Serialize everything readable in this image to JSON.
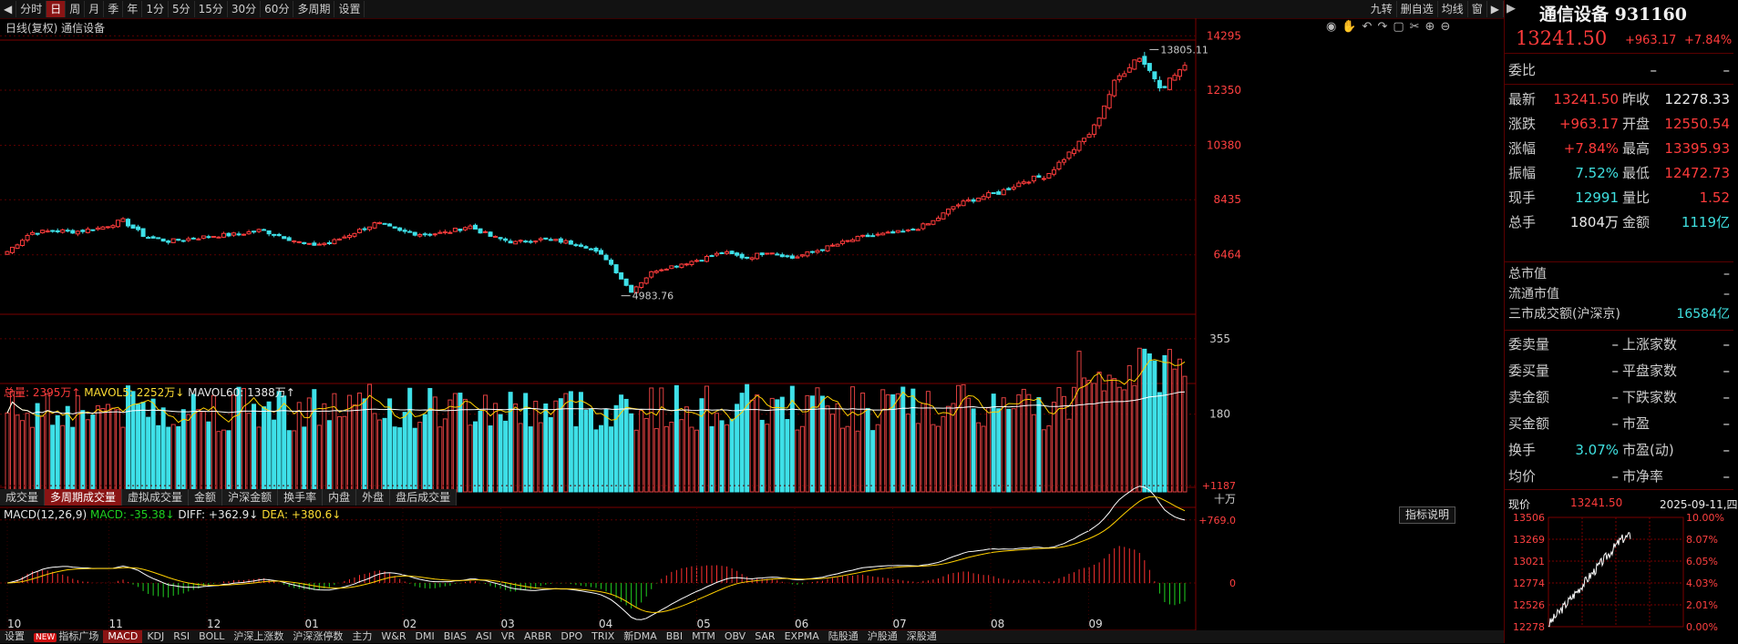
{
  "toolbar": {
    "periods": [
      {
        "label": "◀"
      },
      {
        "label": "分时"
      },
      {
        "label": "日",
        "active": true
      },
      {
        "label": "周"
      },
      {
        "label": "月"
      },
      {
        "label": "季"
      },
      {
        "label": "年"
      },
      {
        "label": "1分"
      },
      {
        "label": "5分"
      },
      {
        "label": "15分"
      },
      {
        "label": "30分"
      },
      {
        "label": "60分"
      },
      {
        "label": "多周期"
      },
      {
        "label": "设置"
      }
    ],
    "right_buttons": [
      {
        "label": "九转"
      },
      {
        "label": "删自选"
      },
      {
        "label": "均线"
      },
      {
        "label": "窗"
      },
      {
        "label": "▶"
      }
    ]
  },
  "main_chart": {
    "title": "日线(复权) 通信设备",
    "y_ticks": [
      "14295",
      "12350",
      "10380",
      "8435",
      "6464"
    ],
    "high_label": "13805.11",
    "low_label": "4983.76"
  },
  "volume": {
    "legend": {
      "total_label": "总量: 2395万↑",
      "mavol5_label": "MAVOL5: 2252万↓",
      "mavol60_label": "MAVOL60: 1388万↑"
    },
    "y_ticks": [
      "355",
      "180"
    ],
    "unit": "十万",
    "tabs": [
      {
        "label": "成交量"
      },
      {
        "label": "多周期成交量",
        "active": true
      },
      {
        "label": "虚拟成交量"
      },
      {
        "label": "金额"
      },
      {
        "label": "沪深金额"
      },
      {
        "label": "换手率"
      },
      {
        "label": "内盘"
      },
      {
        "label": "外盘"
      },
      {
        "label": "盘后成交量"
      }
    ]
  },
  "macd": {
    "legend": {
      "name": "MACD(12,26,9)",
      "macd_label": "MACD: -35.38↓",
      "diff_label": "DIFF: +362.9↓",
      "dea_label": "DEA: +380.6↓"
    },
    "y_ticks": [
      "+1187",
      "+769.0",
      "0"
    ],
    "explain_button": "指标说明"
  },
  "x_axis_months": [
    "10",
    "11",
    "12",
    "01",
    "02",
    "03",
    "04",
    "05",
    "06",
    "07",
    "08",
    "09"
  ],
  "bottom_tabs": [
    {
      "label": "设置"
    },
    {
      "label": "指标广场",
      "new": true,
      "badge": "NEW"
    },
    {
      "label": "MACD",
      "active": true
    },
    {
      "label": "KDJ"
    },
    {
      "label": "RSI"
    },
    {
      "label": "BOLL"
    },
    {
      "label": "沪深上涨数"
    },
    {
      "label": "沪深涨停数"
    },
    {
      "label": "主力"
    },
    {
      "label": "W&R"
    },
    {
      "label": "DMI"
    },
    {
      "label": "BIAS"
    },
    {
      "label": "ASI"
    },
    {
      "label": "VR"
    },
    {
      "label": "ARBR"
    },
    {
      "label": "DPO"
    },
    {
      "label": "TRIX"
    },
    {
      "label": "新DMA"
    },
    {
      "label": "BBI"
    },
    {
      "label": "MTM"
    },
    {
      "label": "OBV"
    },
    {
      "label": "SAR"
    },
    {
      "label": "EXPMA"
    },
    {
      "label": "陆股通"
    },
    {
      "label": "沪股通"
    },
    {
      "label": "深股通"
    }
  ],
  "quote": {
    "name": "通信设备 931160",
    "price": "13241.50",
    "change": "+963.17",
    "change_pct": "+7.84%",
    "weibi_label": "委比",
    "weibi_v1": "–",
    "weibi_v2": "–",
    "rows": [
      {
        "l1": "最新",
        "v1": "13241.50",
        "c1": "red",
        "l2": "昨收",
        "v2": "12278.33",
        "c2": "white"
      },
      {
        "l1": "涨跌",
        "v1": "+963.17",
        "c1": "red",
        "l2": "开盘",
        "v2": "12550.54",
        "c2": "red"
      },
      {
        "l1": "涨幅",
        "v1": "+7.84%",
        "c1": "red",
        "l2": "最高",
        "v2": "13395.93",
        "c2": "red"
      },
      {
        "l1": "振幅",
        "v1": "7.52%",
        "c1": "cyan",
        "l2": "最低",
        "v2": "12472.73",
        "c2": "red"
      },
      {
        "l1": "现手",
        "v1": "12991",
        "c1": "cyan",
        "l2": "量比",
        "v2": "1.52",
        "c2": "red"
      },
      {
        "l1": "总手",
        "v1": "1804万",
        "c1": "white",
        "l2": "金额",
        "v2": "1119亿",
        "c2": "cyan"
      }
    ],
    "mid_rows": [
      {
        "l": "总市值",
        "v": "–"
      },
      {
        "l": "流通市值",
        "v": "–"
      },
      {
        "l": "三市成交额(沪深京)",
        "v": "16584亿",
        "c": "cyan"
      }
    ],
    "breadth_rows": [
      {
        "l1": "委卖量",
        "v1": "–",
        "l2": "上涨家数",
        "v2": "–"
      },
      {
        "l1": "委买量",
        "v1": "–",
        "l2": "平盘家数",
        "v2": "–"
      },
      {
        "l1": "卖金额",
        "v1": "–",
        "l2": "下跌家数",
        "v2": "–"
      },
      {
        "l1": "买金额",
        "v1": "–",
        "l2": "市盈",
        "v2": "–"
      },
      {
        "l1": "换手",
        "v1": "3.07%",
        "c1": "cyan",
        "l2": "市盈(动)",
        "v2": "–"
      },
      {
        "l1": "均价",
        "v1": "–",
        "l2": "市净率",
        "v2": "–"
      }
    ]
  },
  "mini_chart": {
    "label": "现价",
    "price": "13241.50",
    "date": "2025-09-11,四",
    "y_left": [
      "13506",
      "13269",
      "13021",
      "12774",
      "12526",
      "12278"
    ],
    "y_right": [
      "10.00%",
      "8.07%",
      "6.05%",
      "4.03%",
      "2.01%",
      "0.00%"
    ]
  },
  "chart_data": {
    "type": "candlestick",
    "approx_close_path": [
      6580,
      7250,
      7320,
      7300,
      7420,
      7690,
      7100,
      6950,
      7050,
      7150,
      7200,
      7350,
      7100,
      6800,
      6900,
      7250,
      7600,
      7300,
      7200,
      7250,
      7500,
      7100,
      6900,
      7020,
      6950,
      6800,
      6300,
      5150,
      5900,
      6100,
      6300,
      6550,
      6350,
      6600,
      6350,
      6600,
      6850,
      7100,
      7200,
      7300,
      7600,
      8200,
      8500,
      8700,
      9100,
      9300,
      10100,
      10900,
      12700,
      13600,
      12450,
      13241.5
    ]
  }
}
